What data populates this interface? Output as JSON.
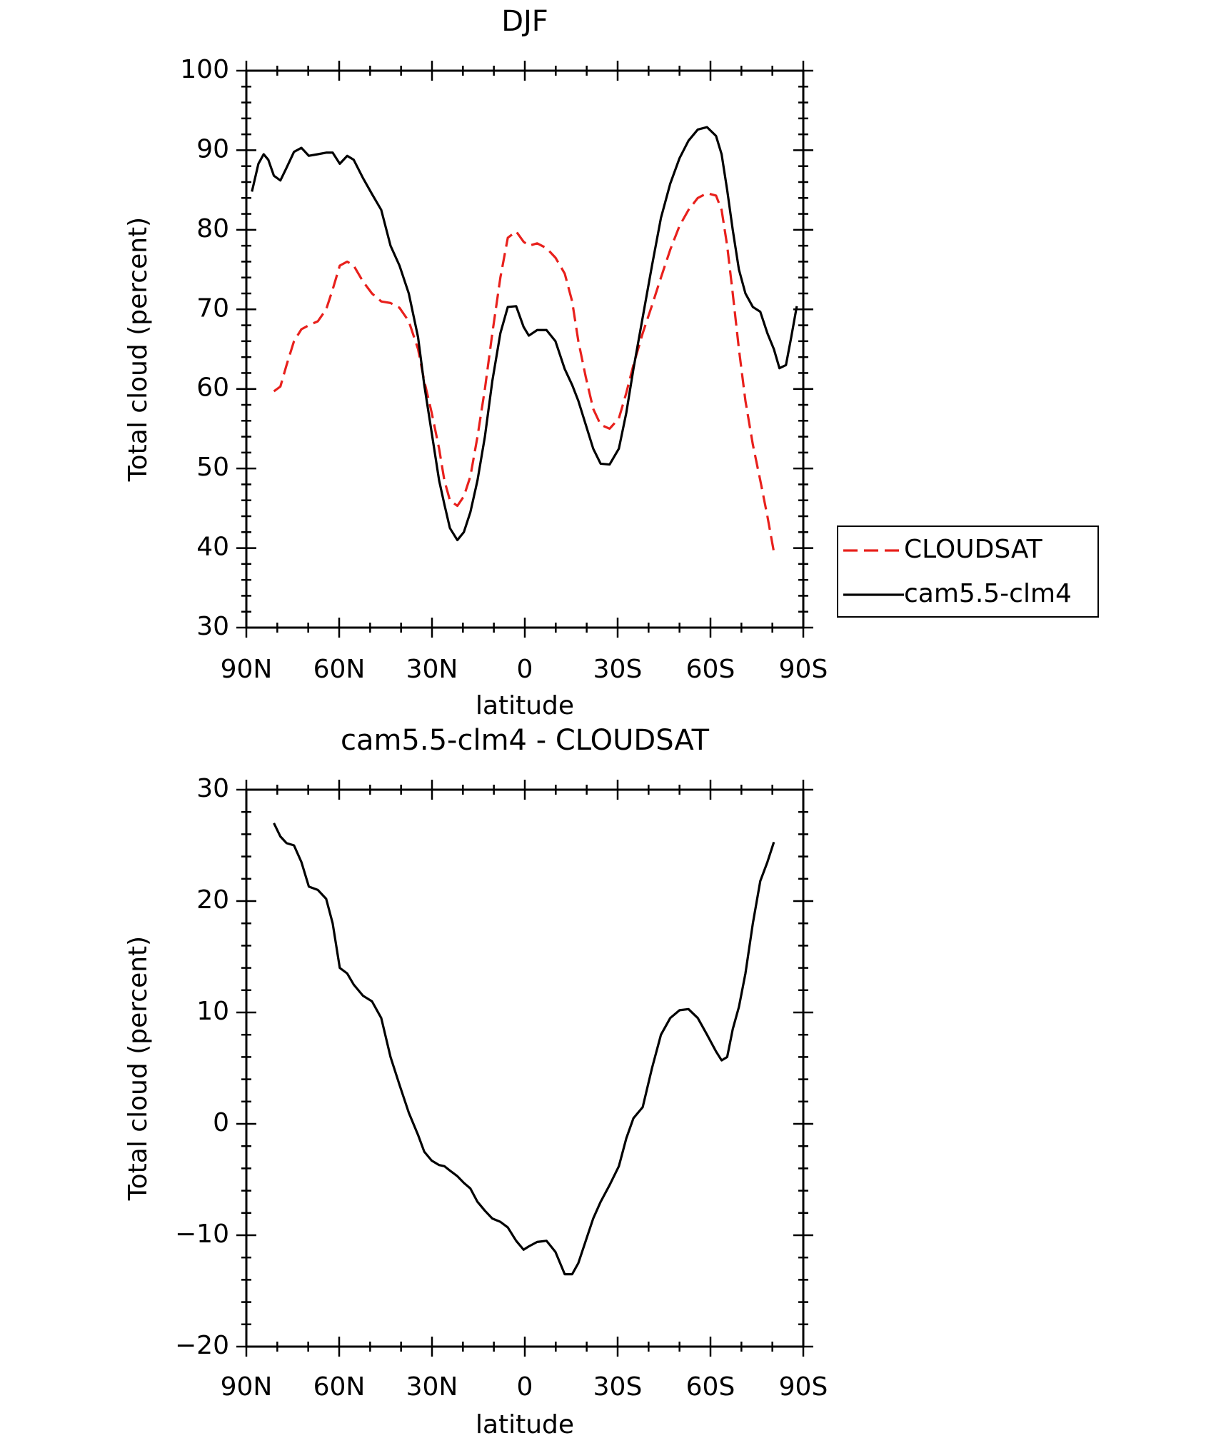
{
  "chart_data": [
    {
      "type": "line",
      "title": "DJF",
      "xlabel": "latitude",
      "ylabel": "Total cloud (percent)",
      "x": [
        88.2,
        86.1,
        84.4,
        82.9,
        81.1,
        79.0,
        77.0,
        74.6,
        72.2,
        69.8,
        66.9,
        64.2,
        62.1,
        59.8,
        57.4,
        55.3,
        52.3,
        49.4,
        46.4,
        43.4,
        40.5,
        37.5,
        34.5,
        32.5,
        30.1,
        27.7,
        26.0,
        24.2,
        21.8,
        19.7,
        17.6,
        15.3,
        12.9,
        10.5,
        7.9,
        5.5,
        2.8,
        0.4,
        -1.3,
        -4.0,
        -7.0,
        -9.9,
        -12.9,
        -15.3,
        -17.3,
        -19.7,
        -22.1,
        -24.5,
        -27.4,
        -30.4,
        -32.8,
        -35.1,
        -38.1,
        -41.1,
        -44.0,
        -47.0,
        -50.0,
        -52.9,
        -55.9,
        -58.9,
        -61.8,
        -63.6,
        -65.4,
        -67.2,
        -69.2,
        -71.3,
        -73.7,
        -76.1,
        -78.4,
        -80.5,
        -82.3,
        -84.4,
        -86.1,
        -87.9
      ],
      "series": [
        {
          "name": "CLOUDSAT",
          "color": "#e8201c",
          "dashed": true,
          "values": [
            null,
            null,
            null,
            null,
            59.7,
            60.3,
            63,
            66,
            67.5,
            68,
            68.5,
            70,
            72.5,
            75.5,
            76,
            75.5,
            73.5,
            72,
            71,
            70.8,
            70.2,
            68.5,
            65,
            61,
            57,
            52.5,
            48.5,
            46,
            45.3,
            46.5,
            49,
            54,
            60,
            67,
            74,
            79,
            79.8,
            78.5,
            78,
            78.3,
            77.7,
            76.5,
            74.5,
            71,
            66,
            61.5,
            57.5,
            55.5,
            55,
            56.3,
            59.5,
            63,
            67,
            70.5,
            74,
            77.5,
            80.5,
            82.5,
            84,
            84.6,
            84.3,
            82.5,
            78,
            72,
            65,
            58.5,
            53,
            48.5,
            44,
            39.5,
            null,
            null,
            null,
            null
          ]
        },
        {
          "name": "cam5.5-clm4",
          "color": "#000000",
          "dashed": false,
          "values": [
            84.8,
            88.3,
            89.5,
            88.8,
            86.8,
            86.2,
            87.8,
            89.8,
            90.3,
            89.3,
            89.5,
            89.7,
            89.7,
            88.3,
            89.3,
            88.8,
            86.5,
            84.5,
            82.5,
            78,
            75.5,
            72,
            66.5,
            60.5,
            54.5,
            48.5,
            45.5,
            42.5,
            41,
            42,
            44.5,
            48.5,
            54,
            61,
            67,
            70.3,
            70.4,
            67.8,
            66.7,
            67.4,
            67.4,
            66,
            62.5,
            60.5,
            58.5,
            55.5,
            52.5,
            50.6,
            50.5,
            52.5,
            57,
            62.5,
            69,
            75.5,
            81.5,
            85.8,
            89,
            91.2,
            92.6,
            92.9,
            91.8,
            89.5,
            85,
            80,
            75,
            72,
            70.3,
            69.7,
            67,
            65,
            62.6,
            63,
            66.5,
            70.4
          ]
        }
      ],
      "xlim": [
        90,
        -90
      ],
      "ylim": [
        30,
        100
      ],
      "xticks": [
        {
          "value": 90,
          "label": "90N"
        },
        {
          "value": 60,
          "label": "60N"
        },
        {
          "value": 30,
          "label": "30N"
        },
        0,
        {
          "value": -30,
          "label": "30S"
        },
        {
          "value": -60,
          "label": "60S"
        },
        {
          "value": -90,
          "label": "90S"
        }
      ],
      "yticks": [
        30,
        40,
        50,
        60,
        70,
        80,
        90,
        100
      ],
      "xminorticks": [
        80,
        70,
        50,
        40,
        20,
        10,
        -10,
        -20,
        -40,
        -50,
        -70,
        -80
      ],
      "yminorticks": [
        32,
        34,
        36,
        38,
        42,
        44,
        46,
        48,
        52,
        54,
        56,
        58,
        62,
        64,
        66,
        68,
        72,
        74,
        76,
        78,
        82,
        84,
        86,
        88,
        92,
        94,
        96,
        98
      ],
      "legend": "outside-right"
    },
    {
      "type": "line",
      "title": "cam5.5-clm4 - CLOUDSAT",
      "xlabel": "latitude",
      "ylabel": "Total cloud (percent)",
      "x": [
        81.1,
        79.0,
        77.0,
        74.6,
        72.2,
        69.8,
        66.9,
        64.2,
        62.1,
        59.8,
        57.4,
        55.3,
        52.3,
        49.4,
        46.4,
        43.4,
        40.5,
        37.5,
        34.5,
        32.5,
        30.1,
        27.7,
        26.0,
        24.2,
        21.8,
        19.7,
        17.6,
        15.3,
        12.9,
        10.5,
        7.9,
        5.5,
        2.8,
        0.4,
        -1.3,
        -4.0,
        -7.0,
        -9.9,
        -12.9,
        -15.3,
        -17.3,
        -19.7,
        -22.1,
        -24.5,
        -27.4,
        -30.4,
        -32.8,
        -35.1,
        -38.1,
        -41.1,
        -44.0,
        -47.0,
        -50.0,
        -52.9,
        -55.9,
        -58.9,
        -61.8,
        -63.6,
        -65.4,
        -67.2,
        -69.2,
        -71.3,
        -73.7,
        -76.1,
        -78.4,
        -80.5
      ],
      "series": [
        {
          "color": "#000000",
          "dashed": false,
          "values": [
            27.0,
            25.8,
            25.2,
            25.0,
            23.5,
            21.3,
            21.0,
            20.2,
            18.0,
            14.0,
            13.5,
            12.5,
            11.5,
            11.0,
            9.5,
            6.0,
            3.5,
            1.0,
            -1.0,
            -2.5,
            -3.3,
            -3.7,
            -3.8,
            -4.2,
            -4.7,
            -5.3,
            -5.8,
            -7.0,
            -7.8,
            -8.5,
            -8.8,
            -9.3,
            -10.5,
            -11.3,
            -11.0,
            -10.6,
            -10.5,
            -11.5,
            -13.5,
            -13.5,
            -12.5,
            -10.5,
            -8.5,
            -7.0,
            -5.5,
            -3.8,
            -1.3,
            0.5,
            1.5,
            5.0,
            8.0,
            9.5,
            10.2,
            10.3,
            9.5,
            8.0,
            6.5,
            5.7,
            6.0,
            8.5,
            10.5,
            13.5,
            18,
            21.8,
            23.5,
            25.3
          ]
        }
      ],
      "xlim": [
        90,
        -90
      ],
      "ylim": [
        -20,
        30
      ],
      "xticks": [
        {
          "value": 90,
          "label": "90N"
        },
        {
          "value": 60,
          "label": "60N"
        },
        {
          "value": 30,
          "label": "30N"
        },
        0,
        {
          "value": -30,
          "label": "30S"
        },
        {
          "value": -60,
          "label": "60S"
        },
        {
          "value": -90,
          "label": "90S"
        }
      ],
      "yticks": [
        {
          "value": -20,
          "label": "−20"
        },
        {
          "value": -10,
          "label": "−10"
        },
        0,
        10,
        20,
        30
      ],
      "xminorticks": [
        80,
        70,
        50,
        40,
        20,
        10,
        -10,
        -20,
        -40,
        -50,
        -70,
        -80
      ],
      "yminorticks": [
        -18,
        -16,
        -14,
        -12,
        -8,
        -6,
        -4,
        -2,
        2,
        4,
        6,
        8,
        12,
        14,
        16,
        18,
        22,
        24,
        26,
        28
      ]
    }
  ]
}
